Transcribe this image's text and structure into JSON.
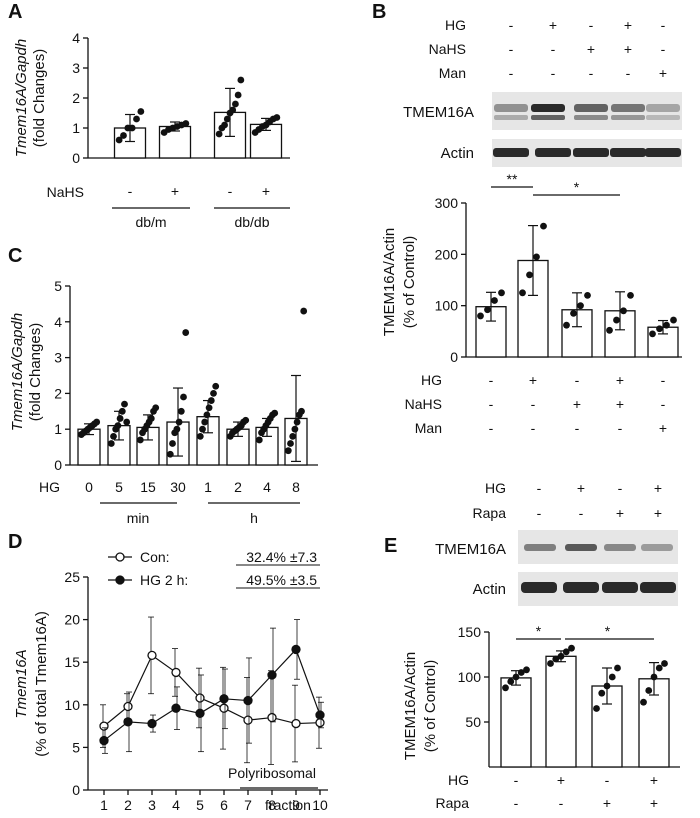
{
  "panel_letters": {
    "a": "A",
    "b": "B",
    "c": "C",
    "d": "D",
    "e": "E"
  },
  "colors": {
    "ink": "#111111",
    "bar_fill": "#ffffff",
    "band": "#2a2a2a",
    "blot_bg": "#e6e6e6"
  },
  "chart_data": [
    {
      "panel": "A",
      "type": "bar",
      "ylabel_gene": "Tmem16A/Gapdh",
      "ylabel_unit": "(fold Changes)",
      "ylim": [
        0,
        4
      ],
      "yticks": [
        "0",
        "1",
        "2",
        "3",
        "4"
      ],
      "treatment_label": "NaHS",
      "treatment_signs": [
        "-",
        "+",
        "-",
        "+"
      ],
      "groups": [
        "db/m",
        "db/db"
      ],
      "values": [
        1.0,
        1.05,
        1.52,
        1.12
      ],
      "errors": [
        0.45,
        0.15,
        0.8,
        0.2
      ],
      "points": [
        [
          0.6,
          0.75,
          1.0,
          1.0,
          1.3,
          1.55
        ],
        [
          0.85,
          0.95,
          1.0,
          1.05,
          1.1,
          1.15
        ],
        [
          0.8,
          1.0,
          1.1,
          1.3,
          1.5,
          1.6,
          1.8,
          2.1,
          2.6
        ],
        [
          0.85,
          0.95,
          1.05,
          1.1,
          1.2,
          1.3,
          1.35
        ]
      ]
    },
    {
      "panel": "C",
      "type": "bar",
      "ylabel_gene": "Tmem16A/Gapdh",
      "ylabel_unit": "(fold  Changes)",
      "ylim": [
        0,
        5
      ],
      "yticks": [
        "0",
        "1",
        "2",
        "3",
        "4",
        "5"
      ],
      "condition_label": "HG",
      "categories": [
        "0",
        "5",
        "15",
        "30",
        "1",
        "2",
        "4",
        "8"
      ],
      "groups": [
        "min",
        "h"
      ],
      "values": [
        1.0,
        1.1,
        1.05,
        1.2,
        1.35,
        1.0,
        1.05,
        1.3
      ],
      "errors": [
        0.15,
        0.4,
        0.35,
        0.95,
        0.45,
        0.2,
        0.25,
        1.2
      ],
      "points": [
        [
          0.85,
          0.9,
          0.95,
          1.0,
          1.05,
          1.1,
          1.15,
          1.2
        ],
        [
          0.6,
          0.8,
          1.0,
          1.1,
          1.3,
          1.5,
          1.7,
          1.2
        ],
        [
          0.7,
          0.9,
          1.0,
          1.1,
          1.2,
          1.3,
          1.5,
          1.6
        ],
        [
          0.3,
          0.6,
          0.9,
          1.0,
          1.2,
          1.5,
          1.9,
          3.7
        ],
        [
          0.8,
          1.0,
          1.2,
          1.4,
          1.6,
          1.8,
          2.0,
          2.2
        ],
        [
          0.8,
          0.9,
          0.95,
          1.0,
          1.05,
          1.1,
          1.2,
          1.25
        ],
        [
          0.7,
          0.9,
          1.0,
          1.1,
          1.2,
          1.3,
          1.4,
          1.45
        ],
        [
          0.4,
          0.6,
          0.8,
          1.0,
          1.2,
          1.4,
          1.5,
          4.3
        ]
      ]
    },
    {
      "panel": "B",
      "type": "bar",
      "ylabel": "TMEM16A/Actin",
      "ylabel_unit": "(% of Control)",
      "ylim": [
        0,
        300
      ],
      "yticks": [
        "0",
        "100",
        "200",
        "300"
      ],
      "rows": [
        {
          "label": "HG",
          "signs": [
            "-",
            "+",
            "-",
            "+",
            "-"
          ]
        },
        {
          "label": "NaHS",
          "signs": [
            "-",
            "-",
            "+",
            "+",
            "-"
          ]
        },
        {
          "label": "Man",
          "signs": [
            "-",
            "-",
            "-",
            "-",
            "+"
          ]
        }
      ],
      "values": [
        98,
        188,
        92,
        90,
        58
      ],
      "errors": [
        28,
        68,
        33,
        37,
        13
      ],
      "points": [
        [
          80,
          92,
          110,
          125
        ],
        [
          125,
          160,
          195,
          255
        ],
        [
          62,
          85,
          100,
          120
        ],
        [
          52,
          72,
          90,
          120
        ],
        [
          45,
          55,
          62,
          72
        ]
      ],
      "significance": [
        {
          "from": 0,
          "to": 1,
          "label": "**"
        },
        {
          "from": 1,
          "to": 3,
          "label": "*"
        }
      ]
    },
    {
      "panel": "D",
      "type": "line",
      "ylabel_gene": "Tmem16A",
      "ylabel_unit": "(% of total Tmem16A)",
      "ylim": [
        0,
        25
      ],
      "yticks": [
        "0",
        "5",
        "10",
        "15",
        "20",
        "25"
      ],
      "x": [
        "1",
        "2",
        "3",
        "4",
        "5",
        "6",
        "7",
        "8",
        "9",
        "10"
      ],
      "xlabel_line1": "Polyribosomal",
      "xlabel_line2": "fraction",
      "series": [
        {
          "name": "Con:",
          "summary": "32.4% ±7.3",
          "marker": "open",
          "values": [
            7.5,
            9.8,
            15.8,
            13.8,
            10.8,
            9.6,
            8.2,
            8.5,
            7.8,
            7.9
          ],
          "errors": [
            2.5,
            1.5,
            4.5,
            2.8,
            3.5,
            4.8,
            5.0,
            5.5,
            4.5,
            3.0
          ]
        },
        {
          "name": "HG 2 h:",
          "summary": "49.5% ±3.5",
          "marker": "filled",
          "values": [
            5.8,
            8.0,
            7.8,
            9.6,
            9.0,
            10.7,
            10.5,
            13.5,
            16.5,
            8.8
          ],
          "errors": [
            1.5,
            3.5,
            1.0,
            2.5,
            4.5,
            3.5,
            5.0,
            5.5,
            3.5,
            1.5
          ]
        }
      ]
    },
    {
      "panel": "E",
      "type": "bar",
      "ylabel": "TMEM16A/Actin",
      "ylabel_unit": "(% of Control)",
      "ylim": [
        0,
        150
      ],
      "yticks": [
        "50",
        "100",
        "150"
      ],
      "rows": [
        {
          "label": "HG",
          "signs": [
            "-",
            "+",
            "-",
            "+"
          ]
        },
        {
          "label": "Rapa",
          "signs": [
            "-",
            "-",
            "+",
            "+"
          ]
        }
      ],
      "values": [
        99,
        123,
        90,
        98
      ],
      "errors": [
        8,
        6,
        20,
        18
      ],
      "points": [
        [
          88,
          95,
          100,
          105,
          108
        ],
        [
          115,
          120,
          123,
          128,
          132
        ],
        [
          65,
          82,
          90,
          100,
          110
        ],
        [
          72,
          85,
          100,
          110,
          115
        ]
      ],
      "significance": [
        {
          "from": 0,
          "to": 1,
          "label": "*"
        },
        {
          "from": 1,
          "to": 3,
          "label": "*"
        }
      ]
    }
  ],
  "blot_b": {
    "header_rows": [
      {
        "label": "HG",
        "signs": [
          "-",
          "+",
          "-",
          "+",
          "-"
        ]
      },
      {
        "label": "NaHS",
        "signs": [
          "-",
          "-",
          "+",
          "+",
          "-"
        ]
      },
      {
        "label": "Man",
        "signs": [
          "-",
          "-",
          "-",
          "-",
          "+"
        ]
      }
    ],
    "band_labels": [
      "TMEM16A",
      "Actin"
    ]
  },
  "blot_e": {
    "header_rows": [
      {
        "label": "HG",
        "signs": [
          "-",
          "+",
          "-",
          "+"
        ]
      },
      {
        "label": "Rapa",
        "signs": [
          "-",
          "-",
          "+",
          "+"
        ]
      }
    ],
    "band_labels": [
      "TMEM16A",
      "Actin"
    ]
  }
}
